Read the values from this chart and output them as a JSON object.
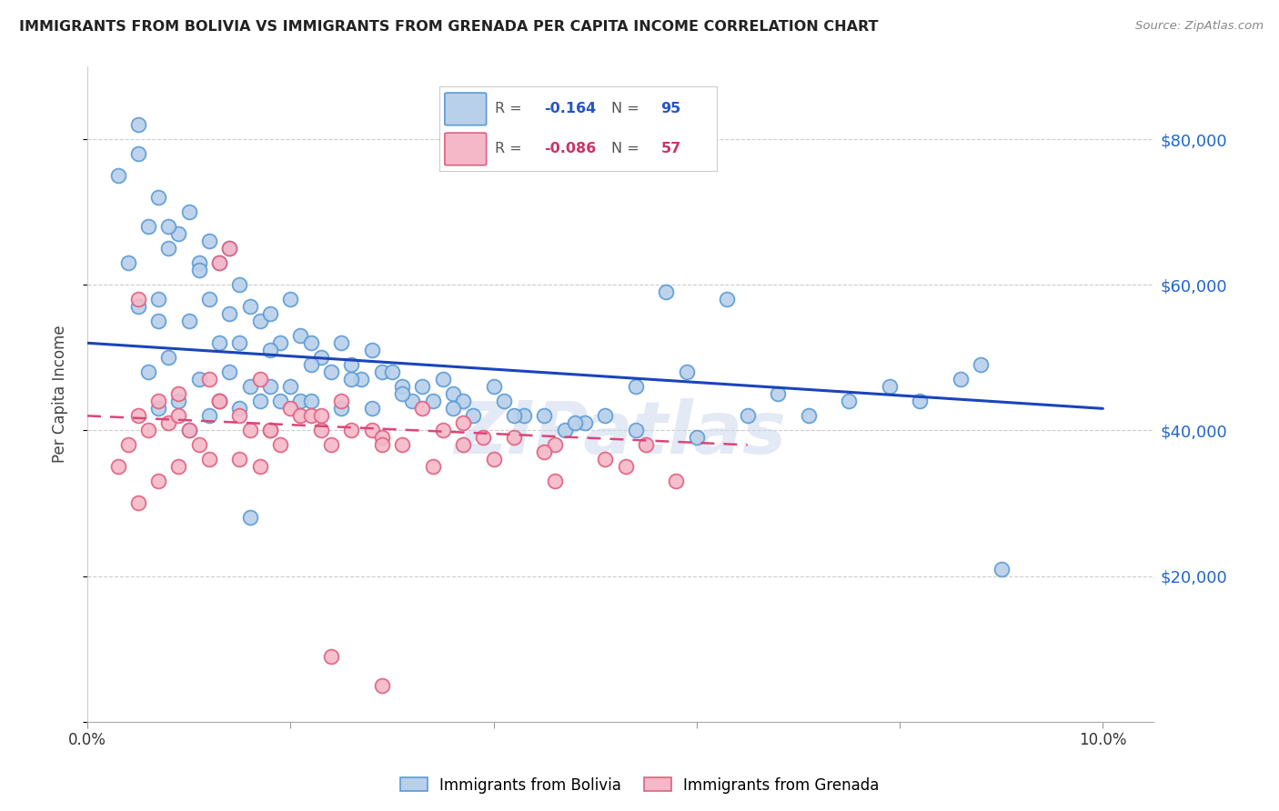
{
  "title": "IMMIGRANTS FROM BOLIVIA VS IMMIGRANTS FROM GRENADA PER CAPITA INCOME CORRELATION CHART",
  "source": "Source: ZipAtlas.com",
  "ylabel": "Per Capita Income",
  "xlim": [
    0.0,
    0.105
  ],
  "ylim": [
    0,
    90000
  ],
  "yticks": [
    0,
    20000,
    40000,
    60000,
    80000
  ],
  "xticks": [
    0.0,
    0.02,
    0.04,
    0.06,
    0.08,
    0.1
  ],
  "xtick_labels": [
    "0.0%",
    "",
    "",
    "",
    "",
    "10.0%"
  ],
  "bolivia_color": "#b8d0ea",
  "bolivia_edge": "#5b9bd5",
  "grenada_color": "#f4b8c8",
  "grenada_edge": "#e06080",
  "bolivia_line_color": "#1a44bb",
  "grenada_line_color": "#dd4477",
  "watermark": "ZIPatlas",
  "background_color": "#ffffff",
  "bolivia_line_x0": 0.0,
  "bolivia_line_y0": 52000,
  "bolivia_line_x1": 0.1,
  "bolivia_line_y1": 43000,
  "grenada_line_x0": 0.0,
  "grenada_line_y0": 42000,
  "grenada_line_x1": 0.065,
  "grenada_line_y1": 38000,
  "bolivia_scatter_x": [
    0.003,
    0.004,
    0.005,
    0.005,
    0.006,
    0.006,
    0.007,
    0.007,
    0.007,
    0.008,
    0.008,
    0.009,
    0.009,
    0.01,
    0.01,
    0.01,
    0.011,
    0.011,
    0.012,
    0.012,
    0.012,
    0.013,
    0.013,
    0.013,
    0.014,
    0.014,
    0.015,
    0.015,
    0.015,
    0.016,
    0.016,
    0.017,
    0.017,
    0.018,
    0.018,
    0.019,
    0.019,
    0.02,
    0.02,
    0.021,
    0.021,
    0.022,
    0.022,
    0.023,
    0.024,
    0.025,
    0.025,
    0.026,
    0.027,
    0.028,
    0.028,
    0.029,
    0.03,
    0.031,
    0.032,
    0.033,
    0.034,
    0.035,
    0.036,
    0.037,
    0.038,
    0.04,
    0.041,
    0.043,
    0.045,
    0.047,
    0.049,
    0.051,
    0.054,
    0.057,
    0.059,
    0.063,
    0.065,
    0.068,
    0.071,
    0.075,
    0.079,
    0.082,
    0.086,
    0.088,
    0.09,
    0.005,
    0.008,
    0.011,
    0.014,
    0.018,
    0.022,
    0.026,
    0.031,
    0.036,
    0.042,
    0.048,
    0.054,
    0.06,
    0.007,
    0.016
  ],
  "bolivia_scatter_y": [
    75000,
    63000,
    82000,
    57000,
    68000,
    48000,
    72000,
    58000,
    43000,
    65000,
    50000,
    67000,
    44000,
    70000,
    55000,
    40000,
    63000,
    47000,
    66000,
    58000,
    42000,
    63000,
    52000,
    44000,
    65000,
    48000,
    60000,
    52000,
    43000,
    57000,
    46000,
    55000,
    44000,
    56000,
    46000,
    52000,
    44000,
    58000,
    46000,
    53000,
    44000,
    52000,
    44000,
    50000,
    48000,
    52000,
    43000,
    49000,
    47000,
    51000,
    43000,
    48000,
    48000,
    46000,
    44000,
    46000,
    44000,
    47000,
    45000,
    44000,
    42000,
    46000,
    44000,
    42000,
    42000,
    40000,
    41000,
    42000,
    46000,
    59000,
    48000,
    58000,
    42000,
    45000,
    42000,
    44000,
    46000,
    44000,
    47000,
    49000,
    21000,
    78000,
    68000,
    62000,
    56000,
    51000,
    49000,
    47000,
    45000,
    43000,
    42000,
    41000,
    40000,
    39000,
    55000,
    28000
  ],
  "grenada_scatter_x": [
    0.003,
    0.004,
    0.005,
    0.005,
    0.006,
    0.007,
    0.007,
    0.008,
    0.009,
    0.009,
    0.01,
    0.011,
    0.012,
    0.012,
    0.013,
    0.013,
    0.014,
    0.015,
    0.015,
    0.016,
    0.017,
    0.017,
    0.018,
    0.019,
    0.02,
    0.021,
    0.022,
    0.023,
    0.024,
    0.025,
    0.026,
    0.028,
    0.029,
    0.031,
    0.033,
    0.035,
    0.037,
    0.039,
    0.042,
    0.046,
    0.051,
    0.055,
    0.058,
    0.005,
    0.009,
    0.013,
    0.018,
    0.023,
    0.029,
    0.037,
    0.045,
    0.053,
    0.024,
    0.029,
    0.034,
    0.04,
    0.046
  ],
  "grenada_scatter_y": [
    35000,
    38000,
    42000,
    30000,
    40000,
    44000,
    33000,
    41000,
    45000,
    35000,
    40000,
    38000,
    47000,
    36000,
    63000,
    44000,
    65000,
    42000,
    36000,
    40000,
    47000,
    35000,
    40000,
    38000,
    43000,
    42000,
    42000,
    40000,
    38000,
    44000,
    40000,
    40000,
    39000,
    38000,
    43000,
    40000,
    41000,
    39000,
    39000,
    38000,
    36000,
    38000,
    33000,
    58000,
    42000,
    44000,
    40000,
    42000,
    38000,
    38000,
    37000,
    35000,
    9000,
    5000,
    35000,
    36000,
    33000
  ]
}
